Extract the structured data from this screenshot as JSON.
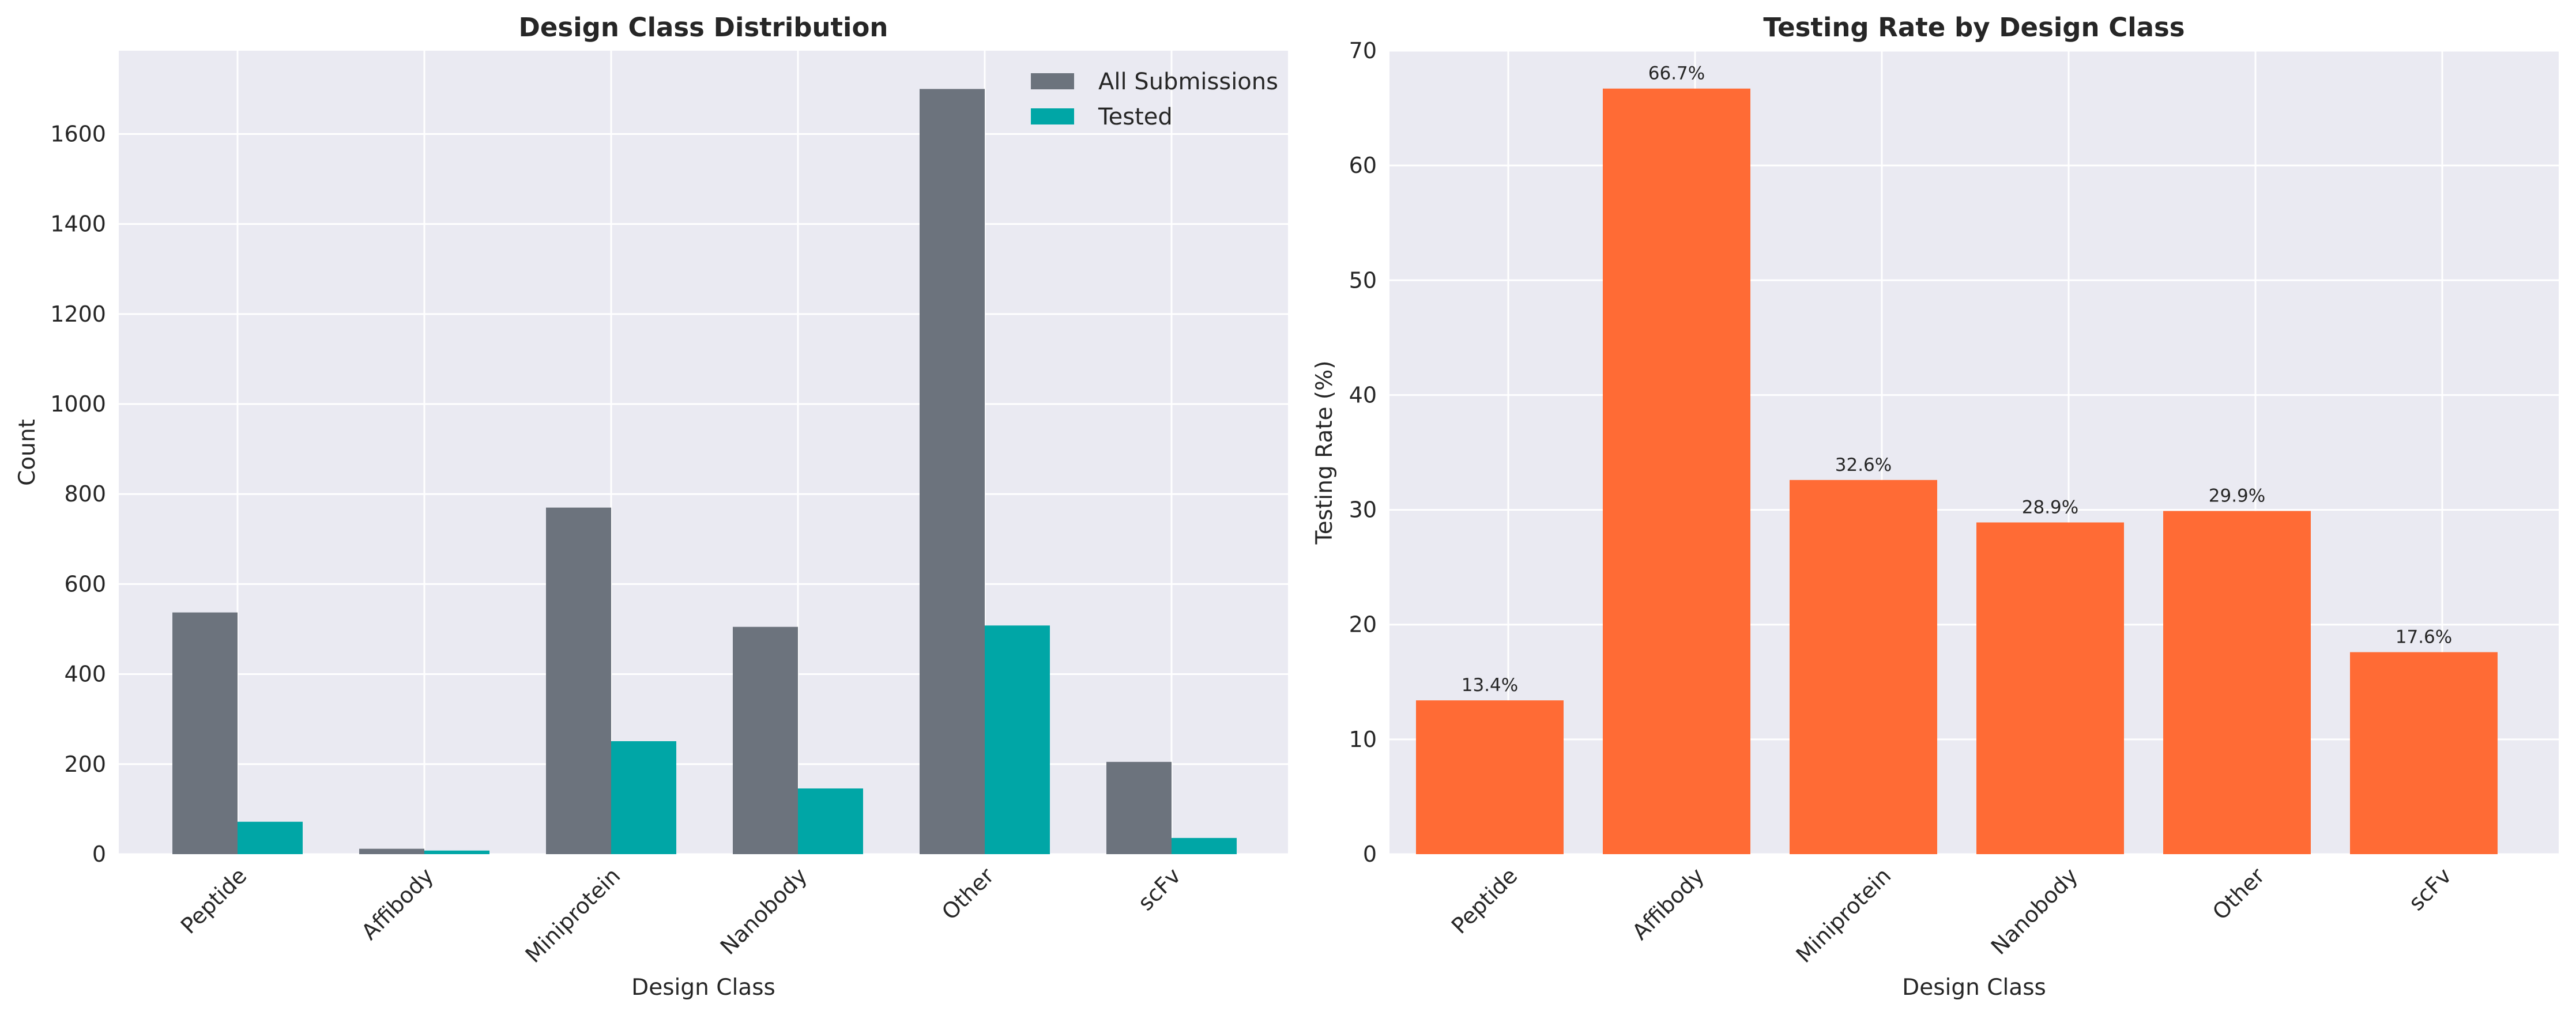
{
  "chart_data": [
    {
      "type": "bar",
      "title": "Design Class Distribution",
      "xlabel": "Design Class",
      "ylabel": "Count",
      "categories": [
        "Peptide",
        "Affibody",
        "Miniprotein",
        "Nanobody",
        "Other",
        "scFv"
      ],
      "series": [
        {
          "name": "All Submissions",
          "values": [
            537,
            12,
            770,
            505,
            1700,
            205
          ],
          "color": "#6c737d"
        },
        {
          "name": "Tested",
          "values": [
            72,
            8,
            251,
            146,
            508,
            36
          ],
          "color": "#00a6a6"
        }
      ],
      "ylim": [
        0,
        1785
      ],
      "yticks": [
        0,
        200,
        400,
        600,
        800,
        1000,
        1200,
        1400,
        1600
      ],
      "grid": true,
      "legend_position": "top-right",
      "background": "#eaeaf2"
    },
    {
      "type": "bar",
      "title": "Testing Rate by Design Class",
      "xlabel": "Design Class",
      "ylabel": "Testing Rate (%)",
      "categories": [
        "Peptide",
        "Affibody",
        "Miniprotein",
        "Nanobody",
        "Other",
        "scFv"
      ],
      "values": [
        13.4,
        66.7,
        32.6,
        28.9,
        29.9,
        17.6
      ],
      "data_labels": [
        "13.4%",
        "66.7%",
        "32.6%",
        "28.9%",
        "29.9%",
        "17.6%"
      ],
      "color": "#ff6b35",
      "ylim": [
        0,
        70
      ],
      "yticks": [
        0,
        10,
        20,
        30,
        40,
        50,
        60,
        70
      ],
      "grid": true,
      "background": "#eaeaf2"
    }
  ]
}
